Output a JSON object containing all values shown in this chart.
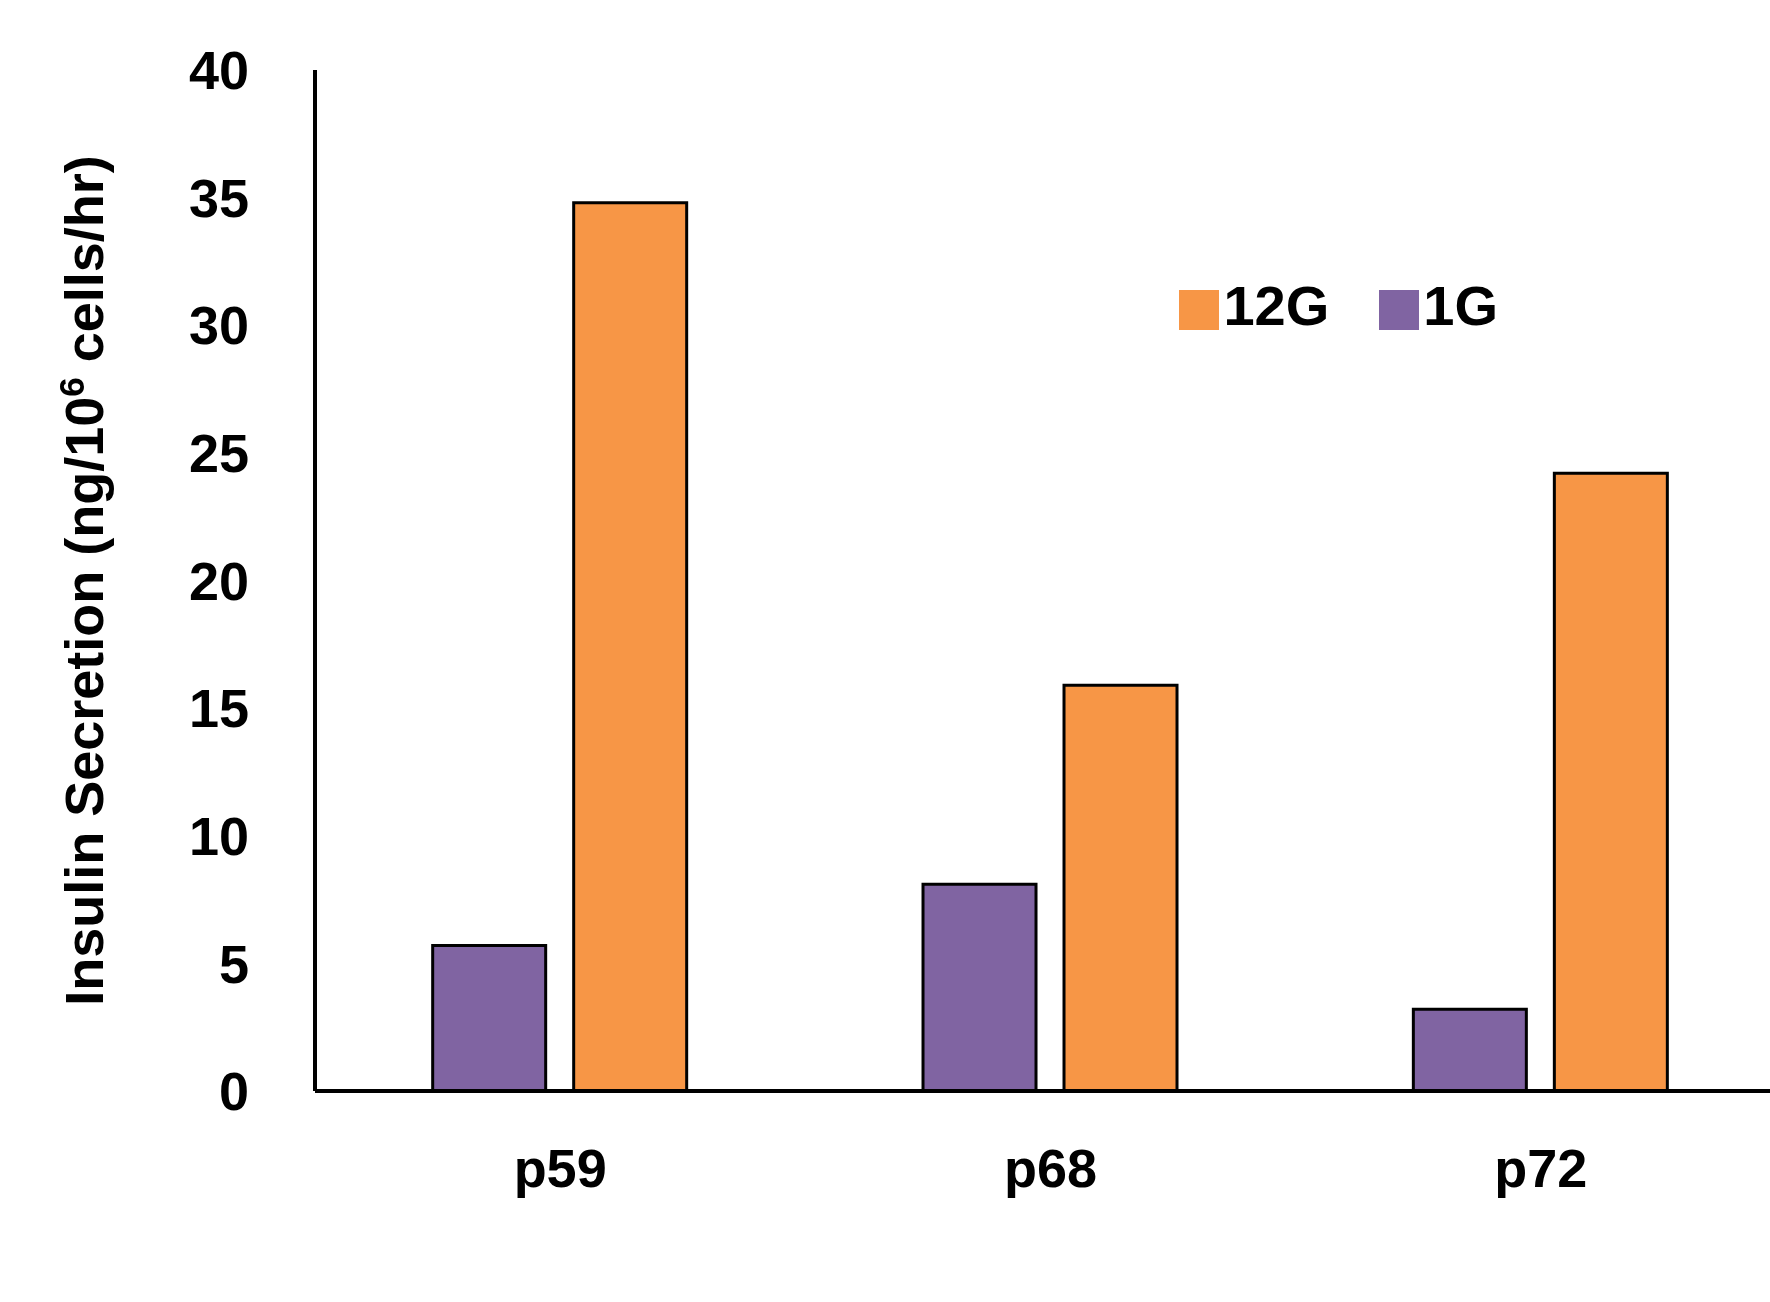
{
  "chart_data": {
    "type": "bar",
    "ylabel": "Insulin Secretion (ng/10$^{6}$ cells/hr)",
    "categories": [
      "p59",
      "p68",
      "p72"
    ],
    "series": [
      {
        "name": "1G",
        "color": "#8064a2",
        "values": [
          5.7,
          8.1,
          3.2
        ]
      },
      {
        "name": "12G",
        "color": "#f79646",
        "values": [
          34.8,
          15.9,
          24.2
        ]
      }
    ],
    "ylim": [
      0,
      40
    ],
    "yticks": [
      0,
      5,
      10,
      15,
      20,
      25,
      30,
      35,
      40
    ],
    "grid": false,
    "legend": "top right"
  }
}
